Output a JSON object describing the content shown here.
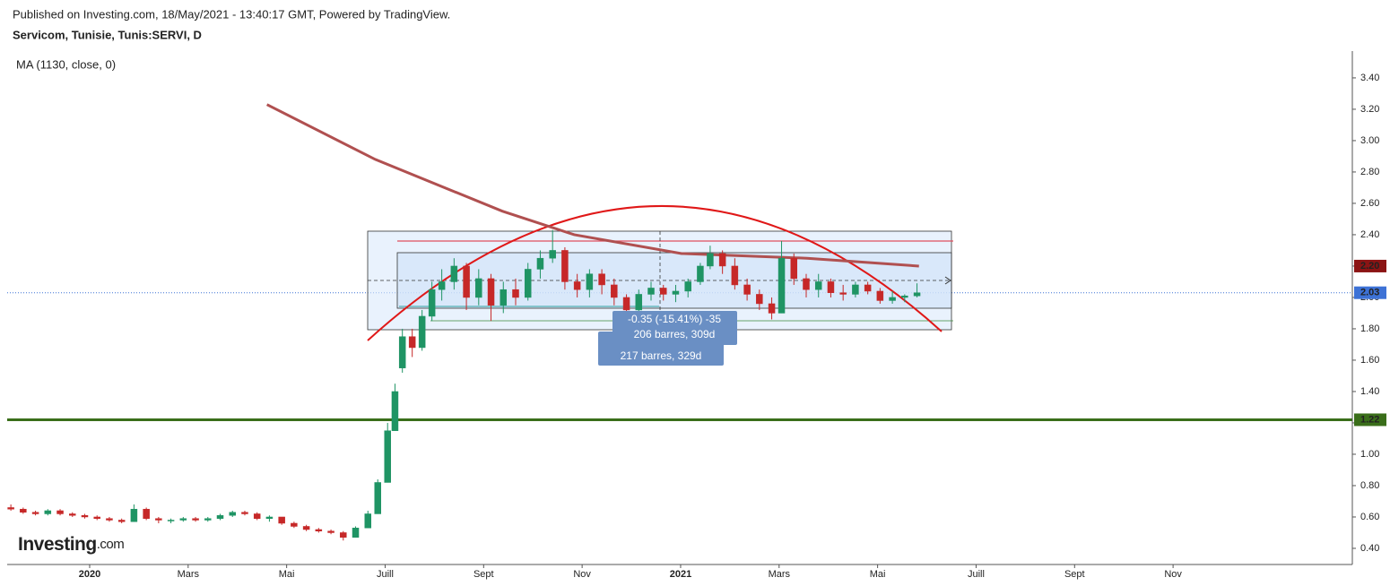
{
  "header": {
    "published": "Published on Investing.com, 18/May/2021 - 13:40:17 GMT, Powered by TradingView.",
    "symbol": "Servicom, Tunisie, Tunis:SERVI, D",
    "logo": "Investing",
    "logo_suffix": ".com"
  },
  "chart_data": {
    "type": "candlestick",
    "xlim": [
      -1.675,
      25.64
    ],
    "ylim": [
      0.297,
      3.571
    ],
    "xticks": [
      {
        "value": 0,
        "label": "2020"
      },
      {
        "value": 2,
        "label": "Mars"
      },
      {
        "value": 4,
        "label": "Mai"
      },
      {
        "value": 6,
        "label": "Juill"
      },
      {
        "value": 8,
        "label": "Sept"
      },
      {
        "value": 10,
        "label": "Nov"
      },
      {
        "value": 12,
        "label": "2021"
      },
      {
        "value": 14,
        "label": "Mars"
      },
      {
        "value": 16,
        "label": "Mai"
      },
      {
        "value": 18,
        "label": "Juill"
      },
      {
        "value": 20,
        "label": "Sept"
      },
      {
        "value": 22,
        "label": "Nov"
      }
    ],
    "yticks": [
      {
        "value": 0.4,
        "label": "0.40"
      },
      {
        "value": 0.6,
        "label": "0.60"
      },
      {
        "value": 0.8,
        "label": "0.80"
      },
      {
        "value": 1,
        "label": "1.00"
      },
      {
        "value": 1.2,
        "label": "1.20"
      },
      {
        "value": 1.4,
        "label": "1.40"
      },
      {
        "value": 1.6,
        "label": "1.60"
      },
      {
        "value": 1.8,
        "label": "1.80"
      },
      {
        "value": 2,
        "label": "2.00"
      },
      {
        "value": 2.2,
        "label": "2.20"
      },
      {
        "value": 2.4,
        "label": "2.40"
      },
      {
        "value": 2.6,
        "label": "2.60"
      },
      {
        "value": 2.8,
        "label": "2.80"
      },
      {
        "value": 3,
        "label": "3.00"
      },
      {
        "value": 3.2,
        "label": "3.20"
      },
      {
        "value": 3.4,
        "label": "3.40"
      }
    ],
    "up_color": "#1f9464",
    "down_color": "#c62828",
    "candles": [
      [
        -1.6,
        0.66,
        0.68,
        0.64,
        0.65
      ],
      [
        -1.35,
        0.65,
        0.66,
        0.62,
        0.63
      ],
      [
        -1.1,
        0.63,
        0.64,
        0.61,
        0.62
      ],
      [
        -0.85,
        0.62,
        0.65,
        0.61,
        0.64
      ],
      [
        -0.6,
        0.64,
        0.65,
        0.61,
        0.62
      ],
      [
        -0.35,
        0.62,
        0.63,
        0.6,
        0.61
      ],
      [
        -0.1,
        0.61,
        0.62,
        0.59,
        0.6
      ],
      [
        0.15,
        0.6,
        0.61,
        0.58,
        0.59
      ],
      [
        0.4,
        0.59,
        0.6,
        0.57,
        0.58
      ],
      [
        0.65,
        0.58,
        0.59,
        0.56,
        0.57
      ],
      [
        0.9,
        0.57,
        0.68,
        0.57,
        0.65
      ],
      [
        1.15,
        0.65,
        0.66,
        0.58,
        0.59
      ],
      [
        1.4,
        0.59,
        0.6,
        0.56,
        0.58
      ],
      [
        1.65,
        0.58,
        0.59,
        0.56,
        0.58
      ],
      [
        1.9,
        0.58,
        0.6,
        0.57,
        0.59
      ],
      [
        2.15,
        0.59,
        0.6,
        0.57,
        0.58
      ],
      [
        2.4,
        0.58,
        0.6,
        0.57,
        0.59
      ],
      [
        2.65,
        0.59,
        0.62,
        0.58,
        0.61
      ],
      [
        2.9,
        0.61,
        0.64,
        0.6,
        0.63
      ],
      [
        3.15,
        0.63,
        0.64,
        0.61,
        0.62
      ],
      [
        3.4,
        0.62,
        0.63,
        0.58,
        0.59
      ],
      [
        3.65,
        0.59,
        0.61,
        0.57,
        0.6
      ],
      [
        3.9,
        0.6,
        0.6,
        0.55,
        0.56
      ],
      [
        4.15,
        0.56,
        0.57,
        0.53,
        0.54
      ],
      [
        4.4,
        0.54,
        0.55,
        0.51,
        0.52
      ],
      [
        4.65,
        0.52,
        0.53,
        0.5,
        0.51
      ],
      [
        4.9,
        0.51,
        0.52,
        0.49,
        0.5
      ],
      [
        5.15,
        0.5,
        0.51,
        0.45,
        0.47
      ],
      [
        5.4,
        0.47,
        0.54,
        0.47,
        0.53
      ],
      [
        5.65,
        0.53,
        0.64,
        0.53,
        0.62
      ],
      [
        5.85,
        0.62,
        0.84,
        0.62,
        0.82
      ],
      [
        6.05,
        0.82,
        1.2,
        0.82,
        1.15
      ],
      [
        6.2,
        1.15,
        1.45,
        1.15,
        1.4
      ],
      [
        6.35,
        1.55,
        1.8,
        1.52,
        1.75
      ],
      [
        6.55,
        1.75,
        1.8,
        1.62,
        1.68
      ],
      [
        6.75,
        1.68,
        1.92,
        1.66,
        1.88
      ],
      [
        6.95,
        1.88,
        2.1,
        1.85,
        2.05
      ],
      [
        7.15,
        2.05,
        2.18,
        1.98,
        2.1
      ],
      [
        7.4,
        2.1,
        2.25,
        2.05,
        2.2
      ],
      [
        7.65,
        2.2,
        2.22,
        1.92,
        2
      ],
      [
        7.9,
        2,
        2.18,
        1.95,
        2.12
      ],
      [
        8.15,
        2.12,
        2.15,
        1.85,
        1.95
      ],
      [
        8.4,
        1.95,
        2.1,
        1.9,
        2.05
      ],
      [
        8.65,
        2.05,
        2.12,
        1.95,
        2
      ],
      [
        8.9,
        2,
        2.22,
        1.98,
        2.18
      ],
      [
        9.15,
        2.18,
        2.3,
        2.12,
        2.25
      ],
      [
        9.4,
        2.25,
        2.43,
        2.22,
        2.3
      ],
      [
        9.65,
        2.3,
        2.32,
        2.05,
        2.1
      ],
      [
        9.9,
        2.1,
        2.15,
        2,
        2.05
      ],
      [
        10.15,
        2.05,
        2.18,
        2,
        2.15
      ],
      [
        10.4,
        2.15,
        2.18,
        2.02,
        2.08
      ],
      [
        10.65,
        2.08,
        2.12,
        1.95,
        2
      ],
      [
        10.9,
        2,
        2.02,
        1.88,
        1.92
      ],
      [
        11.15,
        1.92,
        2.05,
        1.88,
        2.02
      ],
      [
        11.4,
        2.02,
        2.1,
        1.98,
        2.06
      ],
      [
        11.65,
        2.06,
        2.08,
        1.98,
        2.02
      ],
      [
        11.9,
        2.02,
        2.08,
        1.97,
        2.04
      ],
      [
        12.15,
        2.04,
        2.12,
        2,
        2.1
      ],
      [
        12.4,
        2.1,
        2.22,
        2.08,
        2.2
      ],
      [
        12.6,
        2.2,
        2.33,
        2.18,
        2.28
      ],
      [
        12.85,
        2.28,
        2.3,
        2.15,
        2.2
      ],
      [
        13.1,
        2.2,
        2.25,
        2.05,
        2.08
      ],
      [
        13.35,
        2.08,
        2.12,
        1.98,
        2.02
      ],
      [
        13.6,
        2.02,
        2.05,
        1.92,
        1.96
      ],
      [
        13.85,
        1.96,
        2,
        1.86,
        1.9
      ],
      [
        14.05,
        1.9,
        2.36,
        1.9,
        2.25
      ],
      [
        14.3,
        2.25,
        2.28,
        2.08,
        2.12
      ],
      [
        14.55,
        2.12,
        2.15,
        2,
        2.05
      ],
      [
        14.8,
        2.05,
        2.15,
        2,
        2.1
      ],
      [
        15.05,
        2.1,
        2.12,
        2,
        2.03
      ],
      [
        15.3,
        2.03,
        2.08,
        1.98,
        2.02
      ],
      [
        15.55,
        2.02,
        2.1,
        2,
        2.08
      ],
      [
        15.8,
        2.08,
        2.1,
        2.02,
        2.04
      ],
      [
        16.05,
        2.04,
        2.06,
        1.96,
        1.98
      ],
      [
        16.3,
        1.98,
        2.04,
        1.96,
        2
      ],
      [
        16.55,
        2,
        2.02,
        1.97,
        2.01
      ],
      [
        16.8,
        2.01,
        2.09,
        2,
        2.03
      ]
    ],
    "ma": {
      "name": "MA (1130, close, 0)",
      "color": "#b05050",
      "x": [
        3.6,
        5.8,
        8.38,
        9.84,
        12.02,
        14.57,
        16.84
      ],
      "values": [
        3.23,
        2.88,
        2.55,
        2.4,
        2.28,
        2.25,
        2.2
      ]
    },
    "price_labels": [
      {
        "value": 2.2,
        "label": "2.20",
        "color": "#8b1414"
      },
      {
        "value": 2.03,
        "label": "2.03",
        "color": "#3d72d6"
      },
      {
        "value": 1.22,
        "label": "1.22",
        "color": "#3a6e1a"
      }
    ],
    "annotations": [
      "-0.35 (-15.41%) -35",
      "206 barres, 309d",
      "217 barres, 329d"
    ]
  }
}
